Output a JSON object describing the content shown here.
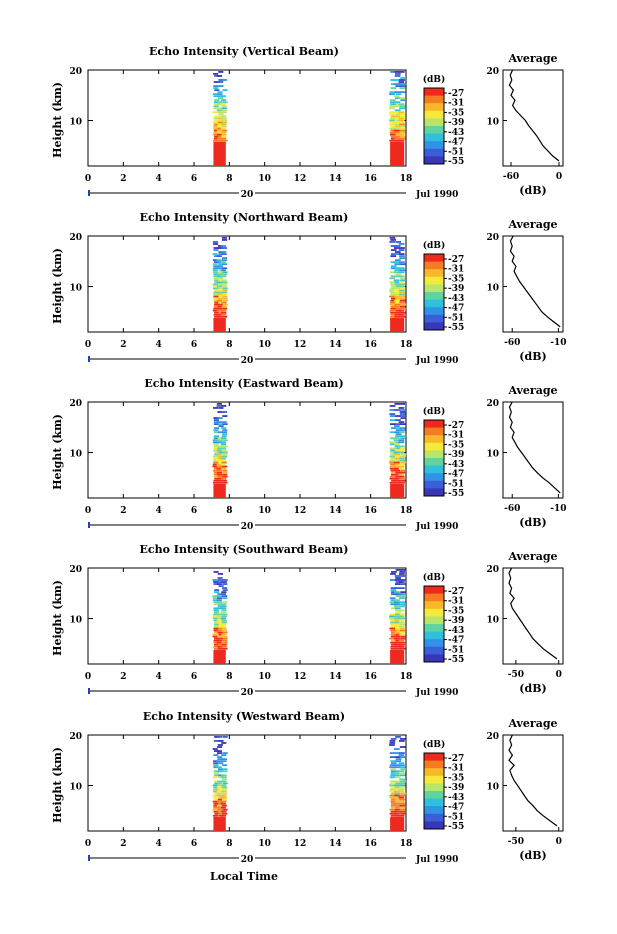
{
  "x_axis_label": "Local Time",
  "x_date_label": "Jul 1990",
  "x_date_tick": "20",
  "x_ticks": [
    "0",
    "2",
    "4",
    "6",
    "8",
    "10",
    "12",
    "14",
    "16",
    "18"
  ],
  "height_label": "Height (km)",
  "height_ticks": [
    "20",
    "10"
  ],
  "colorbar_unit": "(dB)",
  "colorbar_ticks": [
    "-27",
    "-31",
    "-35",
    "-39",
    "-43",
    "-47",
    "-51",
    "-55"
  ],
  "colorbar_colors": [
    "#ee2a1e",
    "#f57c22",
    "#f9b82a",
    "#f5ea3a",
    "#b7e66b",
    "#5fd3a0",
    "#2ec0dc",
    "#2f93e6",
    "#3a5fd8",
    "#3a36b8"
  ],
  "avg_title": "Average",
  "avg_unit": "(dB)",
  "panels": [
    {
      "title": "Echo Intensity (Vertical Beam)",
      "avg_xticks": [
        "-60",
        "0"
      ],
      "avg_xlim": [
        -70,
        5
      ]
    },
    {
      "title": "Echo Intensity (Northward Beam)",
      "avg_xticks": [
        "-60",
        "-10"
      ],
      "avg_xlim": [
        -70,
        -5
      ]
    },
    {
      "title": "Echo Intensity (Eastward Beam)",
      "avg_xticks": [
        "-60",
        "-10"
      ],
      "avg_xlim": [
        -70,
        -5
      ]
    },
    {
      "title": "Echo Intensity (Southward Beam)",
      "avg_xticks": [
        "-50",
        "0"
      ],
      "avg_xlim": [
        -65,
        5
      ]
    },
    {
      "title": "Echo Intensity (Westward Beam)",
      "avg_xticks": [
        "-50",
        "0"
      ],
      "avg_xlim": [
        -65,
        5
      ]
    }
  ],
  "chart_data": {
    "type": "heatmap",
    "x_range": [
      0,
      18
    ],
    "y_range": [
      1,
      20
    ],
    "observation_windows": [
      [
        7.1,
        7.8
      ],
      [
        17.1,
        17.9
      ]
    ],
    "average_profiles": [
      {
        "beam": "Vertical",
        "height": [
          2,
          3,
          4,
          5,
          6,
          7,
          8,
          9,
          10,
          11,
          12,
          13,
          14,
          15,
          16,
          17,
          18,
          19,
          20
        ],
        "db": [
          0,
          -8,
          -14,
          -20,
          -24,
          -28,
          -33,
          -38,
          -42,
          -48,
          -54,
          -58,
          -55,
          -60,
          -57,
          -62,
          -59,
          -61,
          -58
        ]
      },
      {
        "beam": "Northward",
        "height": [
          2,
          3,
          4,
          5,
          6,
          7,
          8,
          9,
          10,
          11,
          12,
          13,
          14,
          15,
          16,
          17,
          18,
          19,
          20
        ],
        "db": [
          -8,
          -15,
          -22,
          -28,
          -32,
          -36,
          -40,
          -44,
          -48,
          -52,
          -55,
          -58,
          -56,
          -60,
          -58,
          -62,
          -60,
          -62,
          -59
        ]
      },
      {
        "beam": "Eastward",
        "height": [
          2,
          3,
          4,
          5,
          6,
          7,
          8,
          9,
          10,
          11,
          12,
          13,
          14,
          15,
          16,
          17,
          18,
          19,
          20
        ],
        "db": [
          -8,
          -14,
          -20,
          -27,
          -33,
          -38,
          -42,
          -46,
          -50,
          -54,
          -57,
          -60,
          -58,
          -62,
          -60,
          -63,
          -61,
          -63,
          -60
        ]
      },
      {
        "beam": "Southward",
        "height": [
          2,
          3,
          4,
          5,
          6,
          7,
          8,
          9,
          10,
          11,
          12,
          13,
          14,
          15,
          16,
          17,
          18,
          19,
          20
        ],
        "db": [
          -2,
          -10,
          -18,
          -24,
          -30,
          -34,
          -38,
          -42,
          -46,
          -50,
          -54,
          -56,
          -52,
          -57,
          -55,
          -58,
          -56,
          -58,
          -55
        ]
      },
      {
        "beam": "Westward",
        "height": [
          2,
          3,
          4,
          5,
          6,
          7,
          8,
          9,
          10,
          11,
          12,
          13,
          14,
          15,
          16,
          17,
          18,
          19,
          20
        ],
        "db": [
          -2,
          -10,
          -18,
          -25,
          -30,
          -36,
          -40,
          -44,
          -48,
          -52,
          -55,
          -57,
          -52,
          -58,
          -54,
          -58,
          -55,
          -57,
          -54
        ]
      }
    ]
  }
}
